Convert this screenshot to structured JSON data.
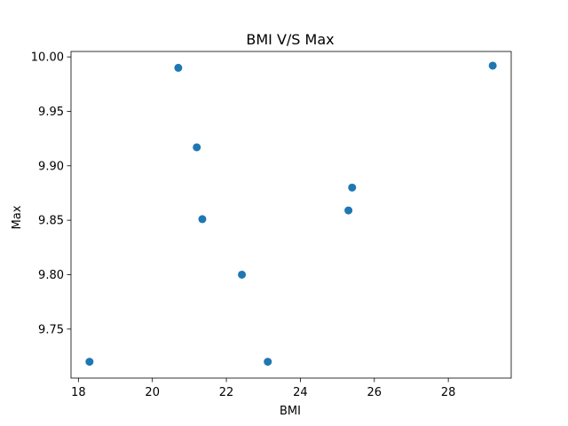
{
  "chart_data": {
    "type": "scatter",
    "title": "BMI V/S Max",
    "xlabel": "BMI",
    "ylabel": "Max",
    "xlim": [
      17.8,
      29.7
    ],
    "ylim": [
      9.705,
      10.005
    ],
    "xticks": [
      18,
      20,
      22,
      24,
      26,
      28
    ],
    "yticks": [
      9.75,
      9.8,
      9.85,
      9.9,
      9.95,
      10.0
    ],
    "xtick_labels": [
      "18",
      "20",
      "22",
      "24",
      "26",
      "28"
    ],
    "ytick_labels": [
      "9.75",
      "9.80",
      "9.85",
      "9.90",
      "9.95",
      "10.00"
    ],
    "grid": false,
    "marker_color": "#1f77b4",
    "points": [
      {
        "x": 18.3,
        "y": 9.72
      },
      {
        "x": 20.7,
        "y": 9.99
      },
      {
        "x": 21.2,
        "y": 9.917
      },
      {
        "x": 21.35,
        "y": 9.851
      },
      {
        "x": 22.42,
        "y": 9.8
      },
      {
        "x": 23.12,
        "y": 9.72
      },
      {
        "x": 25.3,
        "y": 9.859
      },
      {
        "x": 25.4,
        "y": 9.88
      },
      {
        "x": 29.2,
        "y": 9.992
      }
    ]
  }
}
